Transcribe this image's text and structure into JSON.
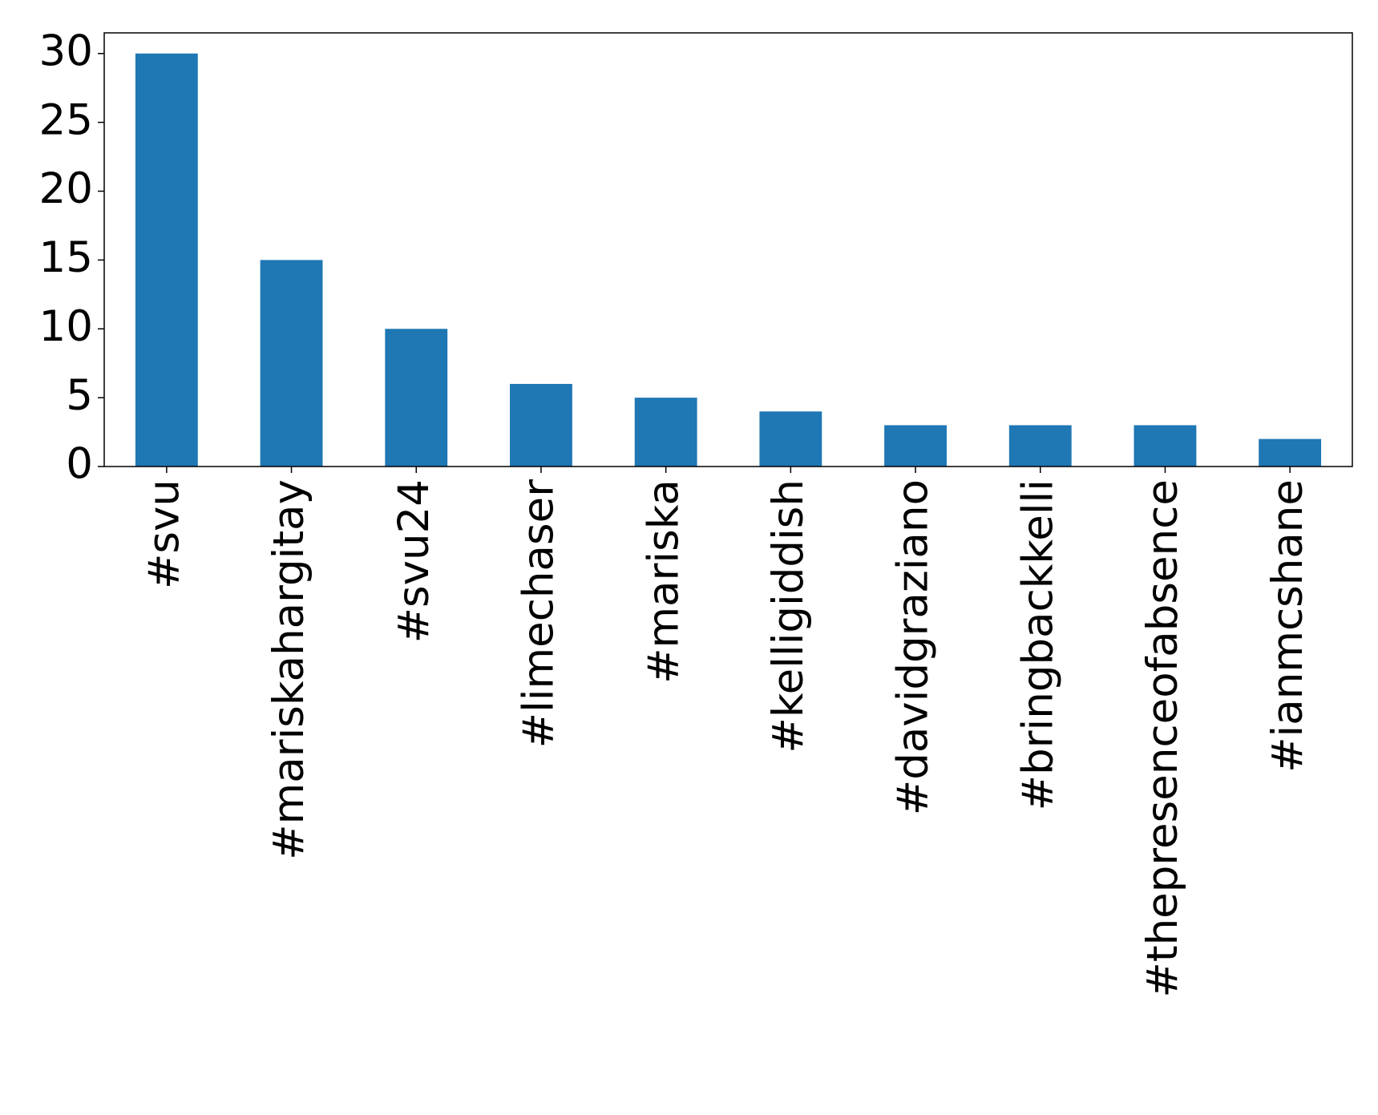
{
  "chart_data": {
    "type": "bar",
    "categories": [
      "#svu",
      "#mariskahargitay",
      "#svu24",
      "#limechaser",
      "#mariska",
      "#kelligiddish",
      "#davidgraziano",
      "#bringbackkelli",
      "#thepresenceofabsence",
      "#ianmcshane"
    ],
    "values": [
      30,
      15,
      10,
      6,
      5,
      4,
      3,
      3,
      3,
      2
    ],
    "color": "#1f77b4",
    "ylim": [
      0,
      31.5
    ],
    "yticks": [
      0,
      5,
      10,
      15,
      20,
      25,
      30
    ],
    "grid": false
  }
}
